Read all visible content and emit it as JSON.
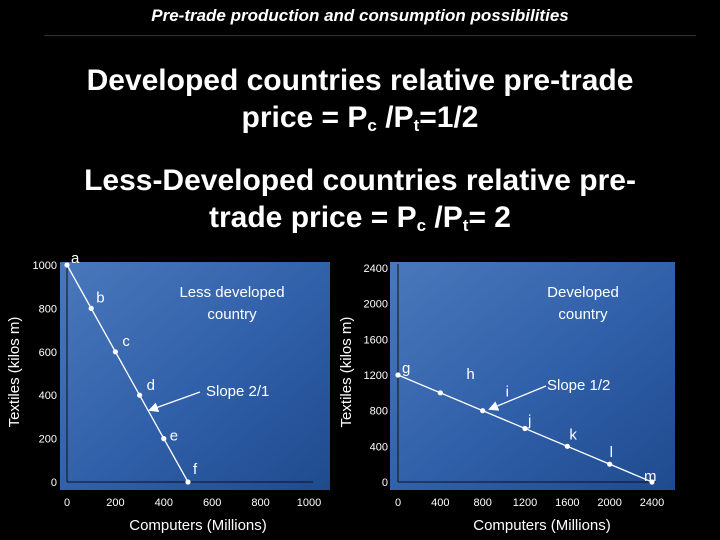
{
  "slide": {
    "title": "Pre-trade production and consumption possibilities",
    "headline1_line1": "Developed countries relative pre-trade",
    "headline1_line2_prefix": "price = P",
    "headline1_sub_c": "c",
    "headline1_mid": " /P",
    "headline1_sub_t": "t",
    "headline1_suffix": "=1/2",
    "headline2_line1": "Less-Developed countries relative pre-",
    "headline2_line2_prefix": "trade price = P",
    "headline2_sub_c": "c",
    "headline2_mid": " /P",
    "headline2_sub_t": "t",
    "headline2_suffix": "= 2"
  },
  "colors": {
    "background": "#000000",
    "panel": "#2f5fa8",
    "panel_light": "#5a86c4",
    "text": "#ffffff",
    "rule": "#1a2a90"
  },
  "chart_data": [
    {
      "type": "line",
      "title": "Less developed country",
      "xlabel": "Computers (Millions)",
      "ylabel": "Textiles (kilos m)",
      "xlim": [
        0,
        1000
      ],
      "ylim": [
        0,
        1000
      ],
      "xticks": [
        "0",
        "200",
        "400",
        "600",
        "800",
        "1000"
      ],
      "yticks": [
        "0",
        "200",
        "400",
        "600",
        "800",
        "1000"
      ],
      "annotation": "Slope 2/1",
      "grid": false,
      "points": [
        {
          "label": "a",
          "x": 0,
          "y": 1000
        },
        {
          "label": "b",
          "x": 100,
          "y": 800
        },
        {
          "label": "c",
          "x": 200,
          "y": 600
        },
        {
          "label": "d",
          "x": 300,
          "y": 400
        },
        {
          "label": "e",
          "x": 400,
          "y": 200
        },
        {
          "label": "f",
          "x": 500,
          "y": 0
        }
      ]
    },
    {
      "type": "line",
      "title": "Developed country",
      "xlabel": "Computers (Millions)",
      "ylabel": "Textiles (kilos m)",
      "xlim": [
        0,
        2400
      ],
      "ylim": [
        0,
        2400
      ],
      "xticks": [
        "0",
        "400",
        "800",
        "1200",
        "1600",
        "2000",
        "2400"
      ],
      "yticks": [
        "0",
        "400",
        "800",
        "1200",
        "1600",
        "2000",
        "2400"
      ],
      "annotation": "Slope 1/2",
      "grid": false,
      "points": [
        {
          "label": "g",
          "x": 0,
          "y": 1200
        },
        {
          "label": "h",
          "x": 400,
          "y": 1000
        },
        {
          "label": "i",
          "x": 800,
          "y": 800
        },
        {
          "label": "j",
          "x": 1200,
          "y": 600
        },
        {
          "label": "k",
          "x": 1600,
          "y": 400
        },
        {
          "label": "l",
          "x": 2000,
          "y": 200
        },
        {
          "label": "m",
          "x": 2400,
          "y": 0
        }
      ]
    }
  ]
}
